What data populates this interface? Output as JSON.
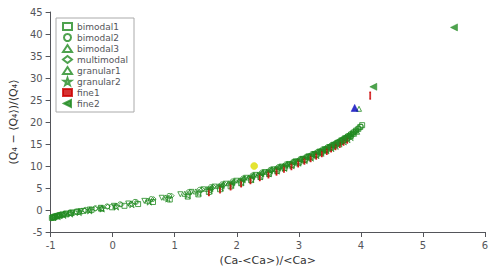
{
  "chart_data": {
    "type": "scatter",
    "xlabel": "(Ca-<Ca>)/<Ca>",
    "ylabel": "(Q₄ − ⟨Q₄⟩)/⟨Q₄⟩",
    "xlim": [
      -1,
      6
    ],
    "ylim": [
      -5,
      45
    ],
    "xticks": [
      -1,
      0,
      1,
      2,
      3,
      4,
      5,
      6
    ],
    "yticks": [
      -5,
      0,
      5,
      10,
      15,
      20,
      25,
      30,
      35,
      40,
      45
    ],
    "grid": false,
    "legend": "upper left",
    "series": [
      {
        "name": "bimodal1",
        "marker": "open_square",
        "color": "#228B22",
        "values": [
          [
            -0.98,
            -1.8
          ],
          [
            -0.96,
            -1.65
          ],
          [
            -0.93,
            -1.5
          ],
          [
            -0.9,
            -1.35
          ],
          [
            -0.86,
            -1.18
          ],
          [
            -0.81,
            -1.0
          ],
          [
            -0.75,
            -0.82
          ],
          [
            -0.67,
            -0.62
          ],
          [
            -0.58,
            -0.42
          ],
          [
            -0.47,
            -0.2
          ],
          [
            -0.34,
            0.05
          ],
          [
            -0.19,
            0.32
          ],
          [
            -0.01,
            0.62
          ],
          [
            0.19,
            0.95
          ],
          [
            0.41,
            1.35
          ],
          [
            0.65,
            1.82
          ],
          [
            0.92,
            2.38
          ],
          [
            1.21,
            3.05
          ],
          [
            1.38,
            3.55
          ],
          [
            1.55,
            4.1
          ],
          [
            1.73,
            4.72
          ],
          [
            1.9,
            5.38
          ],
          [
            2.07,
            6.08
          ],
          [
            2.23,
            6.8
          ],
          [
            2.38,
            7.52
          ],
          [
            2.52,
            8.22
          ],
          [
            2.65,
            8.9
          ],
          [
            2.77,
            9.55
          ],
          [
            2.89,
            10.18
          ],
          [
            3.0,
            10.8
          ],
          [
            3.1,
            11.4
          ],
          [
            3.19,
            11.98
          ],
          [
            3.28,
            12.55
          ],
          [
            3.36,
            13.1
          ],
          [
            3.44,
            13.65
          ],
          [
            3.51,
            14.18
          ],
          [
            3.57,
            14.7
          ],
          [
            3.63,
            15.2
          ],
          [
            3.69,
            15.7
          ],
          [
            3.74,
            16.18
          ],
          [
            3.79,
            16.65
          ],
          [
            3.84,
            17.12
          ],
          [
            3.88,
            17.58
          ],
          [
            3.92,
            18.02
          ],
          [
            3.96,
            18.45
          ],
          [
            3.99,
            18.87
          ],
          [
            4.02,
            19.28
          ]
        ]
      },
      {
        "name": "bimodal2",
        "marker": "open_circle",
        "color": "#228B22",
        "values": [
          [
            -0.97,
            -1.75
          ],
          [
            -0.94,
            -1.58
          ],
          [
            -0.9,
            -1.38
          ],
          [
            -0.85,
            -1.15
          ],
          [
            -0.78,
            -0.9
          ],
          [
            -0.69,
            -0.62
          ],
          [
            -0.58,
            -0.32
          ],
          [
            -0.44,
            0.02
          ],
          [
            -0.28,
            0.4
          ],
          [
            -0.09,
            0.82
          ],
          [
            0.12,
            1.3
          ],
          [
            0.36,
            1.85
          ],
          [
            0.62,
            2.48
          ],
          [
            0.91,
            3.2
          ],
          [
            1.22,
            4.02
          ],
          [
            1.4,
            4.58
          ],
          [
            1.58,
            5.18
          ],
          [
            1.76,
            5.82
          ],
          [
            1.93,
            6.48
          ],
          [
            2.1,
            7.15
          ],
          [
            2.25,
            7.82
          ],
          [
            2.4,
            8.48
          ],
          [
            2.54,
            9.12
          ],
          [
            2.67,
            9.75
          ],
          [
            2.79,
            10.36
          ],
          [
            2.91,
            10.96
          ],
          [
            3.02,
            11.55
          ],
          [
            3.12,
            12.12
          ],
          [
            3.21,
            12.68
          ],
          [
            3.3,
            13.22
          ],
          [
            3.38,
            13.75
          ],
          [
            3.46,
            14.28
          ],
          [
            3.53,
            14.8
          ],
          [
            3.6,
            15.3
          ],
          [
            3.66,
            15.8
          ],
          [
            3.72,
            16.28
          ],
          [
            3.78,
            16.76
          ],
          [
            3.83,
            17.22
          ],
          [
            3.88,
            17.68
          ],
          [
            3.92,
            18.12
          ],
          [
            3.96,
            18.55
          ],
          [
            4.0,
            18.97
          ]
        ]
      },
      {
        "name": "bimodal3",
        "marker": "open_triangle_down",
        "color": "#228B22",
        "values": [
          [
            -0.97,
            -1.72
          ],
          [
            -0.94,
            -1.55
          ],
          [
            -0.89,
            -1.35
          ],
          [
            -0.83,
            -1.12
          ],
          [
            -0.75,
            -0.86
          ],
          [
            -0.65,
            -0.58
          ],
          [
            -0.52,
            -0.26
          ],
          [
            -0.37,
            0.1
          ],
          [
            -0.19,
            0.5
          ],
          [
            0.02,
            0.95
          ],
          [
            0.25,
            1.48
          ],
          [
            0.51,
            2.08
          ],
          [
            0.79,
            2.78
          ],
          [
            1.09,
            3.58
          ],
          [
            1.27,
            4.12
          ],
          [
            1.46,
            4.7
          ],
          [
            1.64,
            5.32
          ],
          [
            1.82,
            5.98
          ],
          [
            1.99,
            6.65
          ],
          [
            2.15,
            7.32
          ],
          [
            2.3,
            7.98
          ],
          [
            2.45,
            8.62
          ],
          [
            2.59,
            9.25
          ],
          [
            2.72,
            9.86
          ],
          [
            2.84,
            10.46
          ],
          [
            2.95,
            11.05
          ],
          [
            3.06,
            11.62
          ],
          [
            3.16,
            12.18
          ],
          [
            3.25,
            12.73
          ],
          [
            3.34,
            13.27
          ],
          [
            3.42,
            13.8
          ],
          [
            3.5,
            14.32
          ],
          [
            3.57,
            14.83
          ],
          [
            3.64,
            15.33
          ],
          [
            3.7,
            15.82
          ],
          [
            3.76,
            16.3
          ],
          [
            3.82,
            16.78
          ],
          [
            3.87,
            17.24
          ],
          [
            3.92,
            17.7
          ]
        ]
      },
      {
        "name": "multimodal",
        "marker": "open_diamond",
        "color": "#228B22",
        "values": [
          [
            -0.96,
            -1.7
          ],
          [
            -0.92,
            -1.52
          ],
          [
            -0.87,
            -1.3
          ],
          [
            -0.8,
            -1.06
          ],
          [
            -0.71,
            -0.78
          ],
          [
            -0.59,
            -0.46
          ],
          [
            -0.45,
            -0.1
          ],
          [
            -0.28,
            0.3
          ],
          [
            -0.08,
            0.74
          ],
          [
            0.14,
            1.24
          ],
          [
            0.39,
            1.82
          ],
          [
            0.66,
            2.48
          ],
          [
            0.95,
            3.25
          ],
          [
            1.26,
            4.12
          ],
          [
            1.44,
            4.68
          ],
          [
            1.62,
            5.28
          ],
          [
            1.8,
            5.92
          ],
          [
            1.97,
            6.58
          ],
          [
            2.13,
            7.24
          ],
          [
            2.28,
            7.9
          ],
          [
            2.43,
            8.55
          ],
          [
            2.57,
            9.18
          ],
          [
            2.7,
            9.8
          ],
          [
            2.82,
            10.4
          ],
          [
            2.93,
            11.0
          ],
          [
            3.04,
            11.58
          ],
          [
            3.14,
            12.15
          ],
          [
            3.23,
            12.7
          ],
          [
            3.32,
            13.25
          ],
          [
            3.4,
            13.78
          ],
          [
            3.48,
            14.3
          ],
          [
            3.55,
            14.82
          ],
          [
            3.62,
            15.32
          ],
          [
            3.68,
            15.82
          ],
          [
            3.74,
            16.3
          ],
          [
            3.8,
            16.78
          ],
          [
            3.85,
            17.24
          ],
          [
            3.9,
            17.7
          ],
          [
            3.95,
            18.15
          ]
        ]
      },
      {
        "name": "granular1",
        "marker": "open_triangle_up",
        "color": "#228B22",
        "values": [
          [
            -0.95,
            -1.68
          ],
          [
            -0.9,
            -1.48
          ],
          [
            -0.84,
            -1.25
          ],
          [
            -0.76,
            -0.99
          ],
          [
            -0.66,
            -0.7
          ],
          [
            -0.53,
            -0.36
          ],
          [
            -0.37,
            0.02
          ],
          [
            -0.18,
            0.45
          ],
          [
            0.04,
            0.93
          ],
          [
            0.29,
            1.48
          ],
          [
            0.56,
            2.12
          ],
          [
            0.85,
            2.85
          ],
          [
            1.16,
            3.68
          ],
          [
            1.34,
            4.22
          ],
          [
            1.52,
            4.8
          ],
          [
            1.7,
            5.42
          ],
          [
            1.87,
            6.08
          ],
          [
            2.04,
            6.74
          ],
          [
            2.19,
            7.4
          ],
          [
            2.34,
            8.05
          ],
          [
            2.48,
            8.68
          ],
          [
            2.62,
            9.3
          ],
          [
            2.74,
            9.9
          ],
          [
            2.86,
            10.5
          ],
          [
            2.97,
            11.08
          ],
          [
            3.08,
            11.65
          ],
          [
            3.17,
            12.22
          ],
          [
            3.27,
            12.78
          ],
          [
            3.35,
            13.32
          ],
          [
            3.43,
            13.85
          ],
          [
            3.51,
            14.38
          ],
          [
            3.58,
            14.9
          ],
          [
            3.65,
            15.4
          ],
          [
            3.72,
            15.9
          ],
          [
            3.78,
            16.38
          ],
          [
            3.84,
            16.86
          ],
          [
            3.89,
            17.33
          ],
          [
            3.94,
            17.78
          ],
          [
            3.97,
            23.0
          ]
        ]
      },
      {
        "name": "granular2",
        "marker": "open_star",
        "color": "#228B22",
        "values": [
          [
            -0.95,
            -1.65
          ],
          [
            -0.88,
            -1.4
          ],
          [
            -0.79,
            -1.12
          ],
          [
            -0.68,
            -0.82
          ],
          [
            -0.54,
            -0.48
          ],
          [
            -0.37,
            -0.1
          ],
          [
            -0.17,
            0.32
          ],
          [
            0.06,
            0.78
          ],
          [
            0.31,
            1.3
          ],
          [
            0.59,
            1.9
          ],
          [
            0.89,
            2.6
          ],
          [
            1.21,
            3.4
          ],
          [
            1.39,
            3.92
          ],
          [
            1.57,
            4.48
          ],
          [
            1.75,
            5.08
          ],
          [
            1.92,
            5.72
          ],
          [
            2.08,
            6.38
          ],
          [
            2.24,
            7.04
          ],
          [
            2.38,
            7.68
          ],
          [
            2.52,
            8.32
          ],
          [
            2.65,
            8.94
          ],
          [
            2.77,
            9.56
          ],
          [
            2.89,
            10.16
          ],
          [
            3.0,
            10.75
          ],
          [
            3.1,
            11.32
          ],
          [
            3.2,
            11.88
          ],
          [
            3.29,
            12.44
          ],
          [
            3.37,
            12.98
          ],
          [
            3.45,
            13.52
          ],
          [
            3.53,
            14.05
          ],
          [
            3.6,
            14.57
          ],
          [
            3.66,
            15.08
          ],
          [
            3.73,
            15.58
          ],
          [
            3.79,
            16.08
          ],
          [
            3.84,
            16.56
          ]
        ]
      },
      {
        "name": "fine1",
        "marker": "tick_down",
        "color": "#CC0000",
        "values": [
          [
            1.55,
            4.85
          ],
          [
            1.73,
            5.5
          ],
          [
            1.9,
            6.18
          ],
          [
            2.07,
            6.88
          ],
          [
            2.22,
            7.58
          ],
          [
            2.37,
            8.25
          ],
          [
            2.51,
            8.9
          ],
          [
            2.64,
            9.55
          ],
          [
            2.76,
            10.18
          ],
          [
            2.88,
            10.8
          ],
          [
            2.99,
            11.42
          ],
          [
            3.09,
            12.02
          ],
          [
            3.19,
            12.6
          ],
          [
            3.28,
            13.17
          ],
          [
            3.37,
            13.72
          ],
          [
            3.45,
            14.26
          ],
          [
            3.52,
            14.8
          ],
          [
            3.59,
            15.32
          ],
          [
            3.66,
            15.83
          ],
          [
            3.72,
            16.32
          ],
          [
            3.78,
            16.8
          ],
          [
            4.15,
            26.8
          ]
        ]
      },
      {
        "name": "fine2",
        "marker": "caret_left",
        "color": "#228B22",
        "values": [
          [
            1.56,
            4.9
          ],
          [
            1.74,
            5.55
          ],
          [
            1.91,
            6.22
          ],
          [
            2.08,
            6.92
          ],
          [
            2.23,
            7.62
          ],
          [
            2.38,
            8.3
          ],
          [
            2.52,
            8.95
          ],
          [
            2.65,
            9.6
          ],
          [
            2.77,
            10.22
          ],
          [
            2.89,
            10.85
          ],
          [
            3.0,
            11.46
          ],
          [
            3.1,
            12.06
          ],
          [
            3.2,
            12.64
          ],
          [
            3.29,
            13.21
          ],
          [
            3.38,
            13.77
          ],
          [
            3.46,
            14.31
          ],
          [
            3.53,
            14.84
          ],
          [
            3.6,
            15.36
          ],
          [
            3.67,
            15.87
          ],
          [
            3.73,
            16.36
          ],
          [
            3.79,
            16.84
          ],
          [
            4.2,
            28.0
          ],
          [
            5.5,
            41.5
          ]
        ]
      },
      {
        "marker": "triangle_up",
        "color": "#0000BB",
        "values": [
          [
            3.9,
            23.2
          ]
        ]
      },
      {
        "marker": "circle",
        "color": "#DDDD00",
        "values": [
          [
            2.28,
            10.0
          ]
        ]
      }
    ]
  }
}
